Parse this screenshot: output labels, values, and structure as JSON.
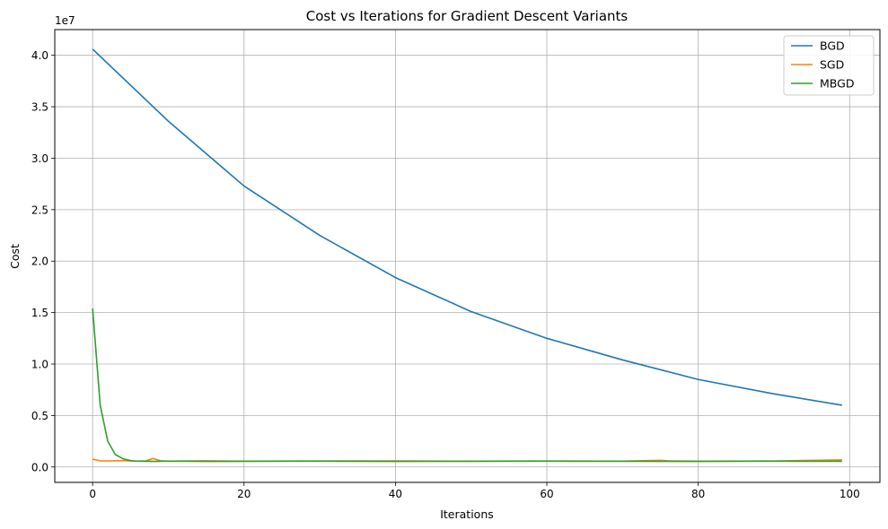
{
  "chart_data": {
    "type": "line",
    "title": "Cost vs Iterations for Gradient Descent Variants",
    "xlabel": "Iterations",
    "ylabel": "Cost",
    "y_offset_label": "1e7",
    "xlim": [
      -5,
      104
    ],
    "ylim": [
      -1500000,
      42500000
    ],
    "x_ticks": [
      0,
      20,
      40,
      60,
      80,
      100
    ],
    "y_ticks": [
      0,
      5000000,
      10000000,
      15000000,
      20000000,
      25000000,
      30000000,
      35000000,
      40000000
    ],
    "y_tick_labels": [
      "0.0",
      "0.5",
      "1.0",
      "1.5",
      "2.0",
      "2.5",
      "3.0",
      "3.5",
      "4.0"
    ],
    "grid": true,
    "legend_position": "top-right",
    "series": [
      {
        "name": "BGD",
        "color": "#1f77b4",
        "x": [
          0,
          10,
          20,
          30,
          40,
          50,
          60,
          70,
          80,
          90,
          99
        ],
        "values": [
          40600000,
          33600000,
          27300000,
          22500000,
          18400000,
          15100000,
          12500000,
          10400000,
          8500000,
          7100000,
          6000000
        ]
      },
      {
        "name": "SGD",
        "color": "#ff7f0e",
        "x": [
          0,
          1,
          2,
          3,
          4,
          5,
          6,
          7,
          8,
          9,
          10,
          15,
          20,
          30,
          41,
          50,
          60,
          70,
          75,
          76,
          80,
          90,
          99
        ],
        "values": [
          750000,
          600000,
          580000,
          600000,
          620000,
          580000,
          560000,
          590000,
          820000,
          600000,
          560000,
          600000,
          560000,
          580000,
          590000,
          560000,
          580000,
          570000,
          640000,
          600000,
          560000,
          580000,
          680000
        ]
      },
      {
        "name": "MBGD",
        "color": "#2ca02c",
        "x": [
          0,
          1,
          2,
          3,
          4,
          5,
          6,
          7,
          8,
          10,
          15,
          20,
          30,
          40,
          50,
          60,
          70,
          80,
          90,
          99
        ],
        "values": [
          15400000,
          6000000,
          2500000,
          1200000,
          800000,
          620000,
          560000,
          550000,
          540000,
          560000,
          540000,
          550000,
          560000,
          540000,
          550000,
          560000,
          550000,
          540000,
          560000,
          550000
        ]
      }
    ]
  }
}
